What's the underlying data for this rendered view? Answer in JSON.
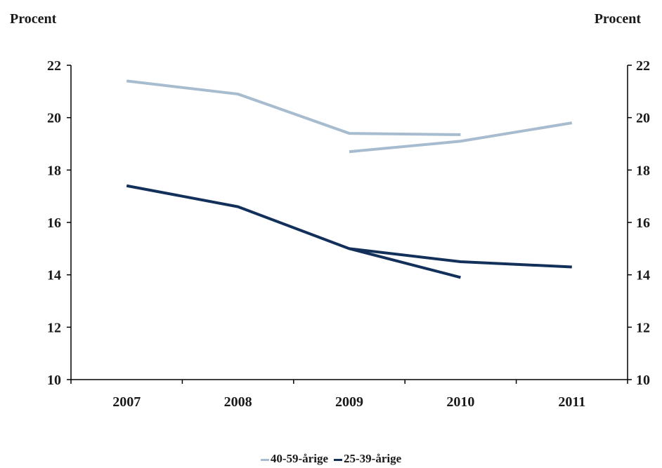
{
  "chart_data": {
    "type": "line",
    "y_unit_left": "Procent",
    "y_unit_right": "Procent",
    "categories": [
      "2007",
      "2008",
      "2009",
      "2010",
      "2011"
    ],
    "ylim": [
      10,
      22
    ],
    "yticks": [
      10,
      12,
      14,
      16,
      18,
      20,
      22
    ],
    "grid": false,
    "legend_position": "bottom",
    "colors": {
      "light": "#a7bccf",
      "dark": "#13305a"
    },
    "series": [
      {
        "name": "40-59-årige",
        "color": "light",
        "segments": [
          {
            "x": [
              "2007",
              "2008",
              "2009",
              "2010"
            ],
            "y": [
              21.4,
              20.9,
              19.4,
              19.35
            ]
          },
          {
            "x": [
              "2009",
              "2010",
              "2011"
            ],
            "y": [
              18.7,
              19.1,
              19.8
            ]
          }
        ]
      },
      {
        "name": "25-39-årige",
        "color": "dark",
        "segments": [
          {
            "x": [
              "2007",
              "2008",
              "2009",
              "2010"
            ],
            "y": [
              17.4,
              16.6,
              15.0,
              13.9
            ]
          },
          {
            "x": [
              "2009",
              "2010",
              "2011"
            ],
            "y": [
              15.0,
              14.5,
              14.3
            ]
          }
        ]
      }
    ]
  }
}
